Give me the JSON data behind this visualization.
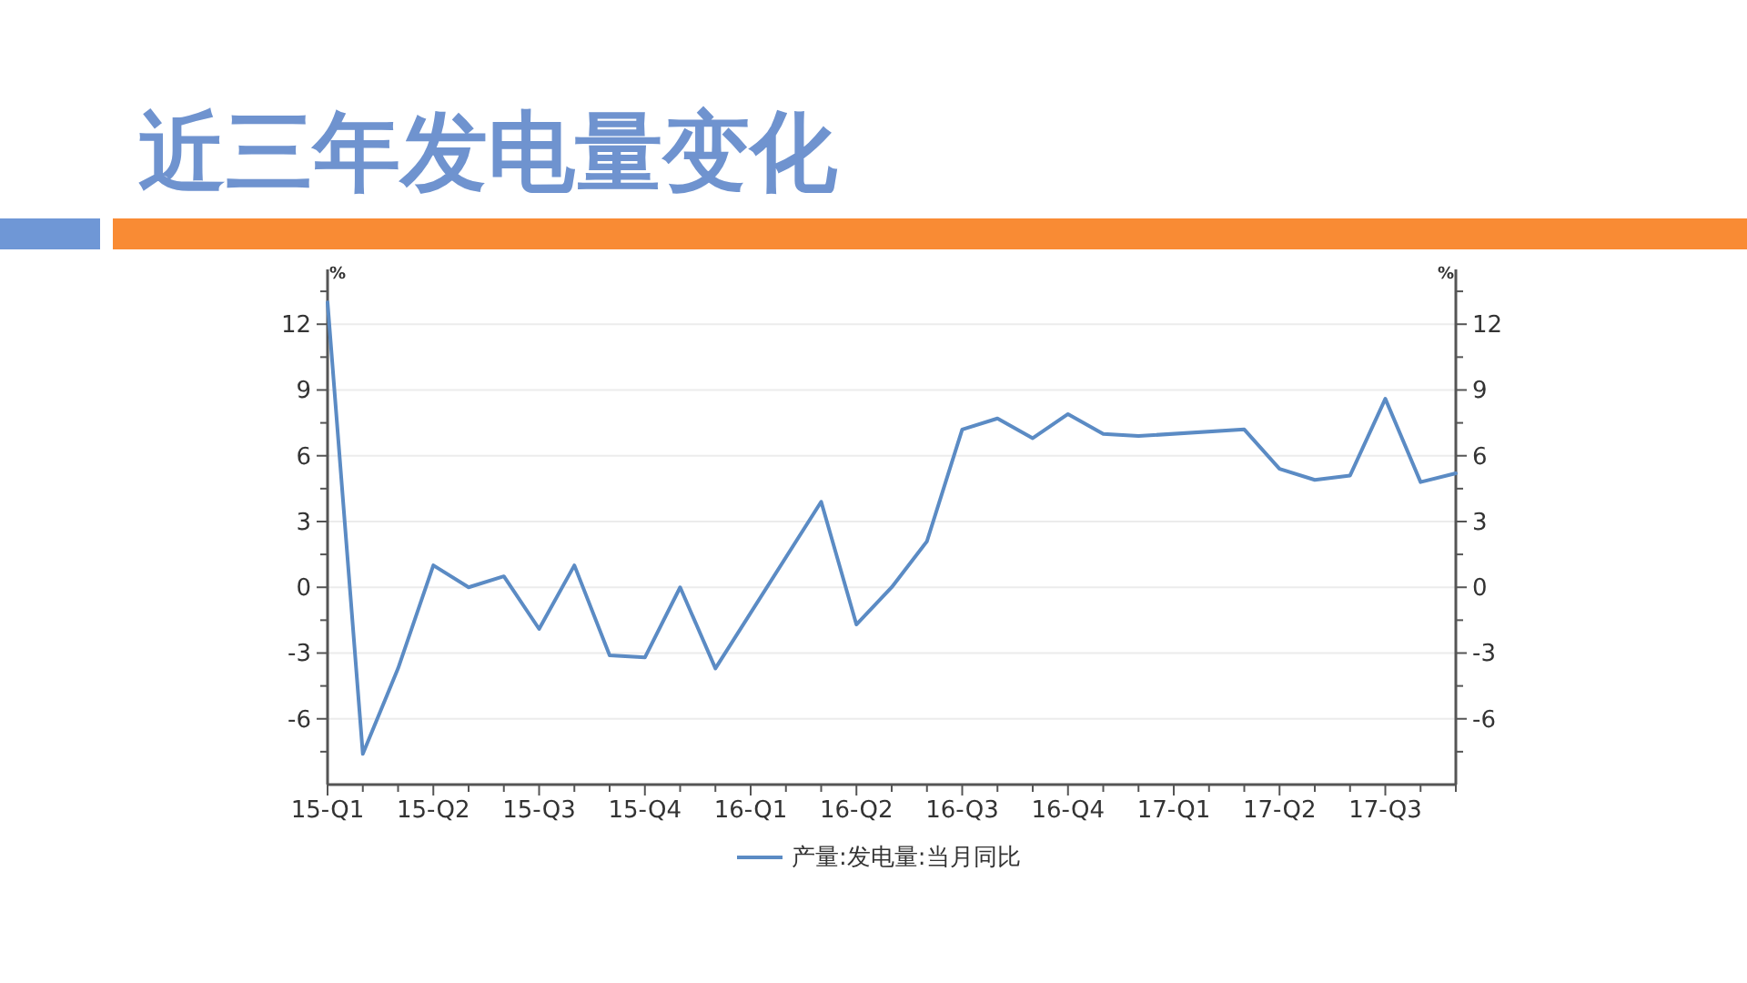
{
  "chart_data": {
    "type": "line",
    "title": "近三年发电量变化",
    "categories": [
      "15-Q1",
      null,
      null,
      "15-Q2",
      null,
      null,
      "15-Q3",
      null,
      null,
      "15-Q4",
      null,
      null,
      "16-Q1",
      null,
      null,
      "16-Q2",
      null,
      null,
      "16-Q3",
      null,
      null,
      "16-Q4",
      null,
      null,
      "17-Q1",
      null,
      null,
      "17-Q2",
      null,
      null,
      "17-Q3",
      null,
      null
    ],
    "series": [
      {
        "name": "产量:发电量:当月同比",
        "color": "#5b8bc4",
        "values": [
          13.0,
          -7.6,
          -3.7,
          1.0,
          0.0,
          0.5,
          -1.9,
          1.0,
          -3.1,
          -3.2,
          0.0,
          -3.7,
          null,
          null,
          3.9,
          -1.7,
          0.0,
          2.1,
          7.2,
          7.7,
          6.8,
          7.9,
          7.0,
          6.9,
          null,
          null,
          7.2,
          5.4,
          4.9,
          5.1,
          8.6,
          4.8,
          5.2
        ]
      }
    ],
    "ylim": [
      -9,
      14.5
    ],
    "yticks": [
      {
        "value": -7.5,
        "label": null
      },
      -6,
      {
        "value": -4.5,
        "label": null
      },
      -3,
      {
        "value": -1.5,
        "label": null
      },
      0,
      {
        "value": 1.5,
        "label": null
      },
      3,
      {
        "value": 4.5,
        "label": null
      },
      6,
      {
        "value": 7.5,
        "label": null
      },
      9,
      {
        "value": 10.5,
        "label": null
      },
      12,
      {
        "value": 13.5,
        "label": null
      }
    ],
    "y2lim": [
      -9,
      14.5
    ],
    "y2ticks": [
      {
        "value": -7.5,
        "label": null
      },
      -6,
      {
        "value": -4.5,
        "label": null
      },
      -3,
      {
        "value": -1.5,
        "label": null
      },
      0,
      {
        "value": 1.5,
        "label": null
      },
      3,
      {
        "value": 4.5,
        "label": null
      },
      6,
      {
        "value": 7.5,
        "label": null
      },
      9,
      {
        "value": 10.5,
        "label": null
      },
      12,
      {
        "value": 13.5,
        "label": null
      }
    ],
    "ylabel": "%",
    "y2label": "%",
    "grid": "y",
    "legend": "bottom",
    "marker": "none",
    "line_style": "solid"
  }
}
